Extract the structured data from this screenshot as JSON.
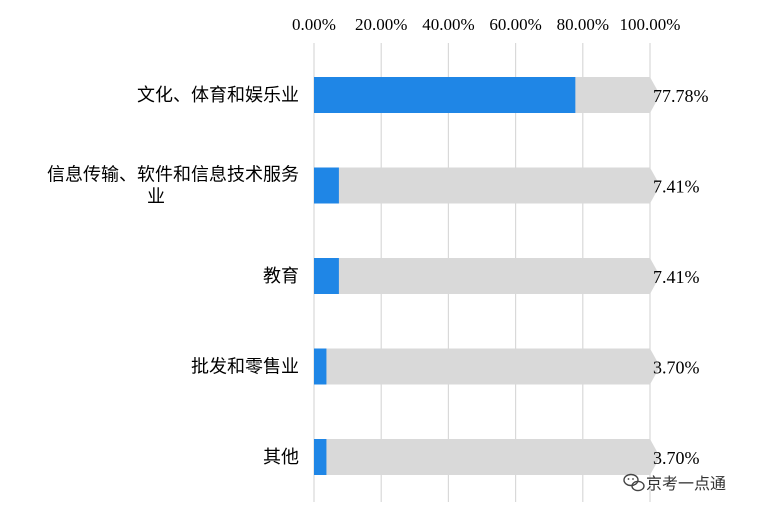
{
  "chart_data": {
    "type": "bar",
    "orientation": "horizontal",
    "categories": [
      [
        "文化、体育和娱乐业"
      ],
      [
        "信息传输、软件和信息技术服务",
        "业"
      ],
      [
        "教育"
      ],
      [
        "批发和零售业"
      ],
      [
        "其他"
      ]
    ],
    "values": [
      77.78,
      7.41,
      7.41,
      3.7,
      3.7
    ],
    "value_labels": [
      "77.78%",
      "7.41%",
      "7.41%",
      "3.70%",
      "3.70%"
    ],
    "xlim": [
      0,
      100
    ],
    "xticks": [
      "0.00%",
      "20.00%",
      "40.00%",
      "60.00%",
      "80.00%",
      "100.00%"
    ],
    "x_axis_position": "top",
    "grid": true,
    "background_bar": true,
    "colors": {
      "bar": "#1f86e6",
      "background_bar": "#d9d9d9",
      "grid": "#d9d9d9"
    }
  },
  "watermark": {
    "text": "京考一点通",
    "icon": "wechat-icon"
  }
}
